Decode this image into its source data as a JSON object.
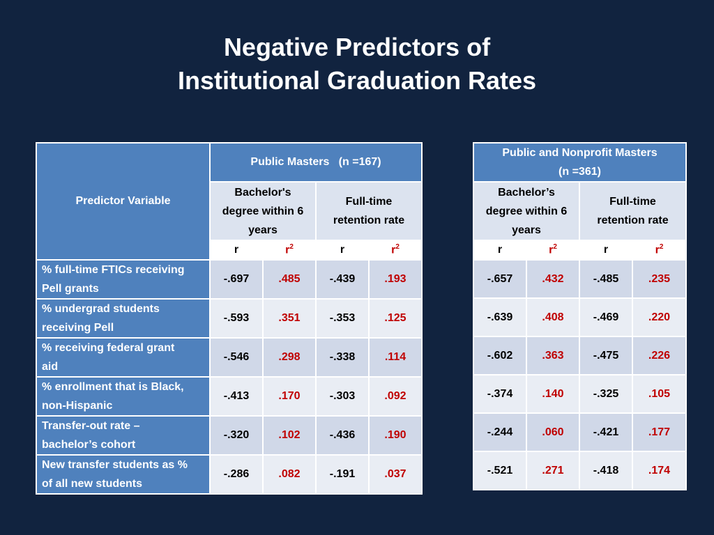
{
  "title": {
    "line1": "Negative Predictors of",
    "line2": "Institutional Graduation Rates"
  },
  "header": {
    "predictor_variable": "Predictor Variable",
    "group1": {
      "title": "Public Masters   (n =167)"
    },
    "group2": {
      "title_line1": "Public and Nonprofit Masters",
      "title_line2": "(n =361)"
    },
    "bachelor_left": {
      "line1": "Bachelor's",
      "line2": "degree within 6",
      "line3": "years"
    },
    "bachelor_right": {
      "line1": "Bachelor’s",
      "line2": "degree within 6",
      "line3": "years"
    },
    "retention": {
      "line1": "Full-time",
      "line2": "retention rate"
    },
    "r": "r",
    "r2": "r",
    "r2_sup": "2"
  },
  "rows": [
    {
      "line1": "% full-time FTICs receiving",
      "line2": "Pell grants",
      "pm_bach_r": "-.697",
      "pm_bach_r2": ".485",
      "pm_ret_r": "-.439",
      "pm_ret_r2": ".193",
      "pnm_bach_r": "-.657",
      "pnm_bach_r2": ".432",
      "pnm_ret_r": "-.485",
      "pnm_ret_r2": ".235"
    },
    {
      "line1": "% undergrad students",
      "line2": "receiving Pell",
      "pm_bach_r": "-.593",
      "pm_bach_r2": ".351",
      "pm_ret_r": "-.353",
      "pm_ret_r2": ".125",
      "pnm_bach_r": "-.639",
      "pnm_bach_r2": ".408",
      "pnm_ret_r": "-.469",
      "pnm_ret_r2": ".220"
    },
    {
      "line1": "%  receiving federal grant",
      "line2": "aid",
      "pm_bach_r": "-.546",
      "pm_bach_r2": ".298",
      "pm_ret_r": "-.338",
      "pm_ret_r2": ".114",
      "pnm_bach_r": "-.602",
      "pnm_bach_r2": ".363",
      "pnm_ret_r": "-.475",
      "pnm_ret_r2": ".226"
    },
    {
      "line1": "% enrollment that is Black,",
      "line2": "non-Hispanic",
      "pm_bach_r": "-.413",
      "pm_bach_r2": ".170",
      "pm_ret_r": "-.303",
      "pm_ret_r2": ".092",
      "pnm_bach_r": "-.374",
      "pnm_bach_r2": ".140",
      "pnm_ret_r": "-.325",
      "pnm_ret_r2": ".105"
    },
    {
      "line1": "Transfer-out rate –",
      "line2": "bachelor’s cohort",
      "pm_bach_r": "-.320",
      "pm_bach_r2": ".102",
      "pm_ret_r": "-.436",
      "pm_ret_r2": ".190",
      "pnm_bach_r": "-.244",
      "pnm_bach_r2": ".060",
      "pnm_ret_r": "-.421",
      "pnm_ret_r2": ".177"
    },
    {
      "line1": "New transfer students as %",
      "line2": "of all new students",
      "pm_bach_r": "-.286",
      "pm_bach_r2": ".082",
      "pm_ret_r": "-.191",
      "pm_ret_r2": ".037",
      "pnm_bach_r": "-.521",
      "pnm_bach_r2": ".271",
      "pnm_ret_r": "-.418",
      "pnm_ret_r2": ".174"
    }
  ],
  "colors": {
    "background": "#11233f",
    "header_blue": "#4f81bd",
    "r2_red": "#c00000"
  }
}
